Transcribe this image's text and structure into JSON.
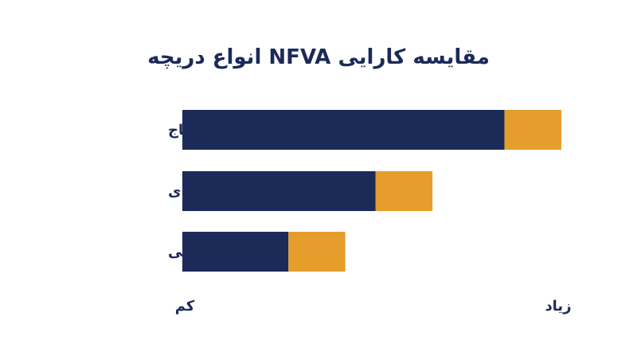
{
  "chart_data": {
    "type": "bar",
    "orientation": "horizontal",
    "stacked": true,
    "title": "مقایسه کارایی NFVA انواع دریچه",
    "categories": [
      "دریچه تاج",
      "دریچه جعبه‌ای",
      "دریچه شیروانی"
    ],
    "series": [
      {
        "values": [
          85,
          51,
          28
        ],
        "color": "#1c2a58"
      },
      {
        "values": [
          15,
          15,
          15
        ],
        "color": "#e59e2b"
      }
    ],
    "xlim": [
      0,
      100
    ],
    "x_axis_start_label": "کم",
    "x_axis_end_label": "زیاد",
    "grid": false,
    "legend": "none"
  }
}
